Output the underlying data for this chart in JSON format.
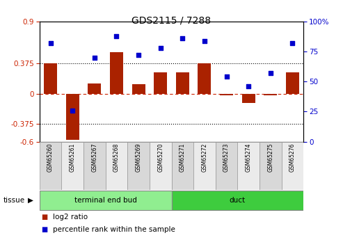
{
  "title": "GDS2115 / 7288",
  "samples": [
    "GSM65260",
    "GSM65261",
    "GSM65267",
    "GSM65268",
    "GSM65269",
    "GSM65270",
    "GSM65271",
    "GSM65272",
    "GSM65273",
    "GSM65274",
    "GSM65275",
    "GSM65276"
  ],
  "log2_ratio": [
    0.375,
    -0.58,
    0.13,
    0.52,
    0.12,
    0.27,
    0.27,
    0.375,
    -0.02,
    -0.12,
    -0.02,
    0.27
  ],
  "percentile_rank": [
    82,
    26,
    70,
    88,
    72,
    78,
    86,
    84,
    54,
    46,
    57,
    82
  ],
  "tissue_groups": [
    {
      "label": "terminal end bud",
      "start": 0,
      "end": 6,
      "color": "#90EE90"
    },
    {
      "label": "duct",
      "start": 6,
      "end": 12,
      "color": "#3ECC3E"
    }
  ],
  "ylim_left": [
    -0.6,
    0.9
  ],
  "ylim_right": [
    0,
    100
  ],
  "yticks_left": [
    -0.6,
    -0.375,
    0,
    0.375,
    0.9
  ],
  "yticks_right": [
    0,
    25,
    50,
    75,
    100
  ],
  "hlines": [
    0.375,
    -0.375
  ],
  "bar_color": "#AA2200",
  "scatter_color": "#0000CC",
  "bar_width": 0.6,
  "tissue_label": "tissue",
  "background_color": "#ffffff",
  "plot_bg": "#ffffff",
  "tick_bg_even": "#D8D8D8",
  "tick_bg_odd": "#EBEBEB"
}
